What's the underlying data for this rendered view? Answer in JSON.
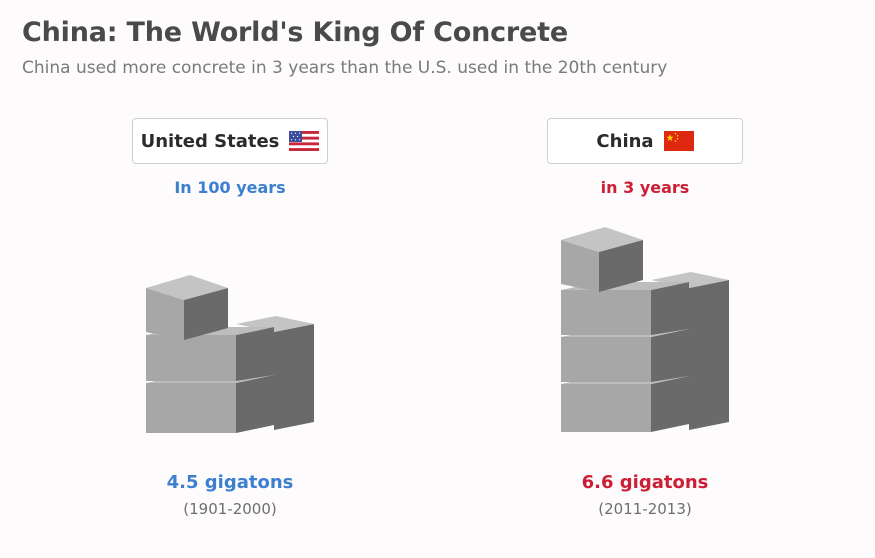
{
  "header": {
    "title": "China: The World's King Of Concrete",
    "subtitle": "China used more concrete in 3 years than the U.S. used in the 20th century"
  },
  "colors": {
    "us_accent": "#3d7fcf",
    "china_accent": "#cc1f36",
    "block_front": "#a7a7a7",
    "block_top": "#c4c4c4",
    "block_side": "#6a6a6a"
  },
  "chart_data": {
    "type": "pictograph",
    "unit": "gigatons",
    "series": [
      {
        "name": "United States",
        "flag_icon": "us-flag-icon",
        "period_label": "In 100 years",
        "value": 4.5,
        "value_label": "4.5 gigatons",
        "range_label": "(1901-2000)"
      },
      {
        "name": "China",
        "flag_icon": "china-flag-icon",
        "period_label": "in 3 years",
        "value": 6.6,
        "value_label": "6.6 gigatons",
        "range_label": "(2011-2013)"
      }
    ]
  }
}
